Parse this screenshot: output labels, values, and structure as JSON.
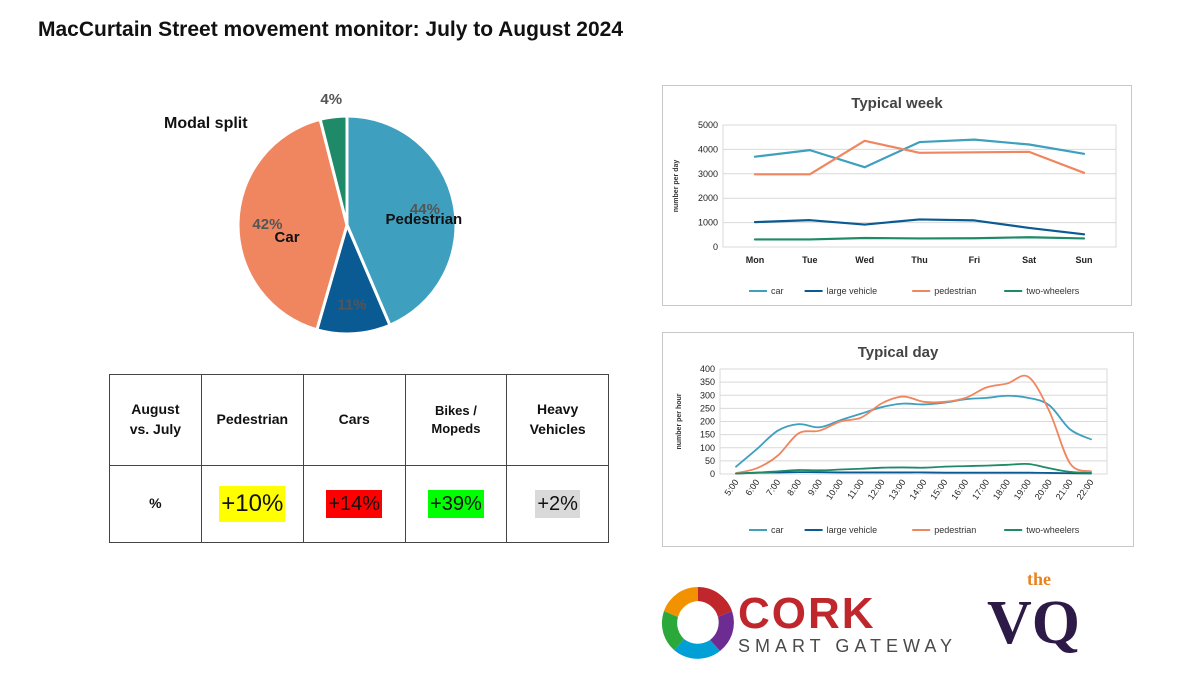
{
  "page": {
    "title": "MacCurtain Street movement monitor: July to August 2024"
  },
  "chart_data": [
    {
      "type": "pie",
      "title": "Modal split",
      "slices": [
        {
          "label": "Pedestrian",
          "value": 44,
          "value_label": "44%",
          "color": "#3e9fbf"
        },
        {
          "label": "",
          "value": 11,
          "value_label": "11%",
          "color": "#0a5a93"
        },
        {
          "label": "Car",
          "value": 42,
          "value_label": "42%",
          "color": "#f0865f"
        },
        {
          "label": "",
          "value": 4,
          "value_label": "4%",
          "color": "#1e8a68"
        }
      ]
    },
    {
      "type": "line",
      "title": "Typical week",
      "ylabel": "number per day",
      "xlabel": "",
      "ylim": [
        0,
        5000
      ],
      "yticks": [
        "0",
        "1000",
        "2000",
        "3000",
        "4000",
        "5000"
      ],
      "ytick_values": [
        0,
        1000,
        2000,
        3000,
        4000,
        5000
      ],
      "categories": [
        "Mon",
        "Tue",
        "Wed",
        "Thu",
        "Fri",
        "Sat",
        "Sun"
      ],
      "grid": true,
      "legend": "bottom",
      "series": [
        {
          "name": "car",
          "color": "#3e9fbf",
          "values": [
            3700,
            3970,
            3270,
            4300,
            4400,
            4200,
            3820
          ]
        },
        {
          "name": "large vehicle",
          "color": "#0a5a93",
          "values": [
            1020,
            1100,
            920,
            1130,
            1090,
            780,
            520
          ]
        },
        {
          "name": "pedestrian",
          "color": "#f0865f",
          "values": [
            2980,
            2980,
            4350,
            3860,
            3880,
            3900,
            3040
          ]
        },
        {
          "name": "two-wheelers",
          "color": "#1e8a68",
          "values": [
            310,
            310,
            370,
            350,
            360,
            400,
            350
          ]
        }
      ]
    },
    {
      "type": "line",
      "title": "Typical day",
      "ylabel": "number per hour",
      "xlabel": "",
      "ylim": [
        0,
        400
      ],
      "yticks": [
        "0",
        "50",
        "100",
        "150",
        "200",
        "250",
        "300",
        "350",
        "400"
      ],
      "ytick_values": [
        0,
        50,
        100,
        150,
        200,
        250,
        300,
        350,
        400
      ],
      "categories": [
        "5:00",
        "6:00",
        "7:00",
        "8:00",
        "9:00",
        "10:00",
        "11:00",
        "12:00",
        "13:00",
        "14:00",
        "15:00",
        "16:00",
        "17:00",
        "18:00",
        "19:00",
        "20:00",
        "21:00",
        "22:00"
      ],
      "grid": true,
      "legend": "bottom",
      "series": [
        {
          "name": "car",
          "color": "#3e9fbf",
          "values": [
            28,
            95,
            165,
            190,
            178,
            205,
            230,
            255,
            268,
            265,
            272,
            285,
            290,
            298,
            290,
            262,
            170,
            132
          ]
        },
        {
          "name": "large vehicle",
          "color": "#0a5a93",
          "values": [
            2,
            5,
            6,
            7,
            7,
            6,
            6,
            6,
            6,
            6,
            5,
            5,
            5,
            5,
            5,
            4,
            3,
            2
          ]
        },
        {
          "name": "pedestrian",
          "color": "#f0865f",
          "values": [
            3,
            22,
            70,
            155,
            165,
            200,
            215,
            270,
            295,
            275,
            275,
            290,
            330,
            345,
            370,
            240,
            40,
            10
          ]
        },
        {
          "name": "two-wheelers",
          "color": "#1e8a68",
          "values": [
            2,
            5,
            10,
            15,
            14,
            17,
            20,
            24,
            25,
            24,
            28,
            30,
            32,
            35,
            38,
            22,
            8,
            4
          ]
        }
      ]
    }
  ],
  "table": {
    "headers": [
      "August vs. July",
      "Pedestrian",
      "Cars",
      "Bikes / Mopeds",
      "Heavy Vehicles"
    ],
    "row_label": "%",
    "values": [
      {
        "text": "+10%",
        "bg": "#ffff00"
      },
      {
        "text": "+14%",
        "bg": "#ff0000"
      },
      {
        "text": "+39%",
        "bg": "#00ff00"
      },
      {
        "text": "+2%",
        "bg": "#d9d9d9"
      }
    ]
  },
  "logos": {
    "cork": {
      "main": "CORK",
      "sub": "SMART GATEWAY",
      "colors": [
        "#c0272d",
        "#f39200",
        "#00a0d6",
        "#6d2c91",
        "#2aa83a"
      ]
    },
    "vq": {
      "small": "the",
      "main": "VQ",
      "colors": [
        "#2e1a47",
        "#e8821e"
      ]
    }
  }
}
